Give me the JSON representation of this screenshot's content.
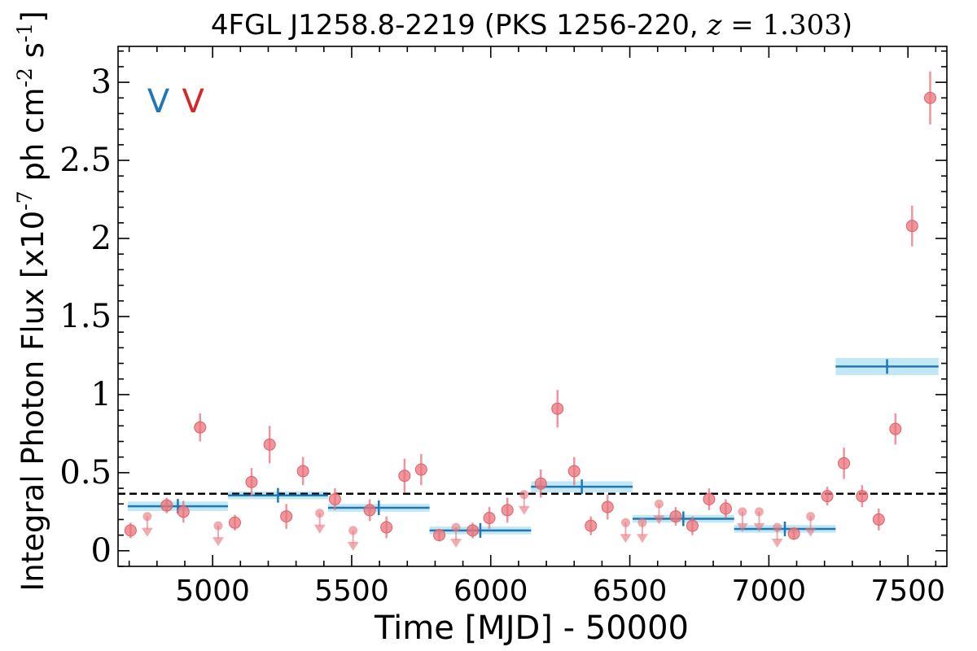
{
  "chart_data": {
    "type": "scatter",
    "title": "4FGL J1258.8-2219 (PKS 1256-220, z = 1.303)",
    "title_parts": {
      "prefix": "4FGL J1258.8-2219 (PKS 1256-220, ",
      "var": "z",
      "eq": " = 1.303",
      "suffix": ")"
    },
    "xlabel": "Time [MJD] - 50000",
    "ylabel": "Integral Photon Flux [x10",
    "ylabel_exp": "-7",
    "ylabel_mid": " ph cm",
    "ylabel_exp2": "-2",
    "ylabel_end": " s",
    "ylabel_exp3": "-1",
    "ylabel_close": "]",
    "xlim": [
      4660,
      7640
    ],
    "ylim": [
      -0.1,
      3.23
    ],
    "xticks": [
      5000,
      5500,
      6000,
      6500,
      7000,
      7500
    ],
    "xtick_labels": [
      "5000",
      "5500",
      "6000",
      "6500",
      "7000",
      "7500"
    ],
    "yticks": [
      0,
      0.5,
      1,
      1.5,
      2,
      2.5,
      3
    ],
    "ytick_labels": [
      "0",
      "0.5",
      "1",
      "1.5",
      "2",
      "2.5",
      "3"
    ],
    "markers": [
      {
        "x": 4805,
        "label": "V",
        "color": "#1f77b4"
      },
      {
        "x": 4930,
        "label": "V",
        "color": "#d62728"
      }
    ],
    "mean_flux": 0.365,
    "series": [
      {
        "kind": "detections",
        "color": "#e8737a",
        "points": [
          {
            "x": 4705,
            "y": 0.13,
            "err": 0.05
          },
          {
            "x": 4835,
            "y": 0.29,
            "err": 0.05
          },
          {
            "x": 4895,
            "y": 0.25,
            "err": 0.07
          },
          {
            "x": 4955,
            "y": 0.79,
            "err": 0.09
          },
          {
            "x": 5080,
            "y": 0.18,
            "err": 0.05
          },
          {
            "x": 5140,
            "y": 0.44,
            "err": 0.09
          },
          {
            "x": 5205,
            "y": 0.68,
            "err": 0.12
          },
          {
            "x": 5265,
            "y": 0.22,
            "err": 0.08
          },
          {
            "x": 5325,
            "y": 0.51,
            "err": 0.09
          },
          {
            "x": 5440,
            "y": 0.33,
            "err": 0.07
          },
          {
            "x": 5565,
            "y": 0.26,
            "err": 0.07
          },
          {
            "x": 5625,
            "y": 0.15,
            "err": 0.07
          },
          {
            "x": 5690,
            "y": 0.48,
            "err": 0.11
          },
          {
            "x": 5750,
            "y": 0.52,
            "err": 0.1
          },
          {
            "x": 5815,
            "y": 0.1,
            "err": 0.04
          },
          {
            "x": 5935,
            "y": 0.13,
            "err": 0.05
          },
          {
            "x": 5995,
            "y": 0.21,
            "err": 0.07
          },
          {
            "x": 6060,
            "y": 0.26,
            "err": 0.08
          },
          {
            "x": 6180,
            "y": 0.43,
            "err": 0.09
          },
          {
            "x": 6240,
            "y": 0.91,
            "err": 0.12
          },
          {
            "x": 6300,
            "y": 0.51,
            "err": 0.09
          },
          {
            "x": 6360,
            "y": 0.16,
            "err": 0.06
          },
          {
            "x": 6420,
            "y": 0.28,
            "err": 0.08
          },
          {
            "x": 6665,
            "y": 0.22,
            "err": 0.06
          },
          {
            "x": 6725,
            "y": 0.16,
            "err": 0.06
          },
          {
            "x": 6785,
            "y": 0.33,
            "err": 0.07
          },
          {
            "x": 6845,
            "y": 0.27,
            "err": 0.06
          },
          {
            "x": 7090,
            "y": 0.11,
            "err": 0.04
          },
          {
            "x": 7210,
            "y": 0.35,
            "err": 0.06
          },
          {
            "x": 7270,
            "y": 0.56,
            "err": 0.1
          },
          {
            "x": 7335,
            "y": 0.35,
            "err": 0.07
          },
          {
            "x": 7395,
            "y": 0.2,
            "err": 0.07
          },
          {
            "x": 7455,
            "y": 0.78,
            "err": 0.1
          },
          {
            "x": 7515,
            "y": 2.08,
            "err": 0.13
          },
          {
            "x": 7580,
            "y": 2.9,
            "err": 0.17
          }
        ]
      },
      {
        "kind": "upper_limits",
        "color": "#e8737a",
        "points": [
          {
            "x": 4765,
            "y": 0.22
          },
          {
            "x": 5020,
            "y": 0.16
          },
          {
            "x": 5385,
            "y": 0.24
          },
          {
            "x": 5505,
            "y": 0.13
          },
          {
            "x": 5875,
            "y": 0.15
          },
          {
            "x": 6120,
            "y": 0.36
          },
          {
            "x": 6485,
            "y": 0.18
          },
          {
            "x": 6545,
            "y": 0.18
          },
          {
            "x": 6605,
            "y": 0.3
          },
          {
            "x": 6905,
            "y": 0.25
          },
          {
            "x": 6965,
            "y": 0.25
          },
          {
            "x": 7030,
            "y": 0.15
          },
          {
            "x": 7150,
            "y": 0.22
          }
        ]
      },
      {
        "kind": "bins",
        "color": "#1f77b4",
        "band_color": "#a8def0",
        "points": [
          {
            "x0": 4695,
            "x1": 5055,
            "y": 0.285,
            "err": 0.03
          },
          {
            "x0": 5055,
            "x1": 5415,
            "y": 0.355,
            "err": 0.025
          },
          {
            "x0": 5415,
            "x1": 5780,
            "y": 0.275,
            "err": 0.025
          },
          {
            "x0": 5780,
            "x1": 6145,
            "y": 0.13,
            "err": 0.025
          },
          {
            "x0": 6145,
            "x1": 6510,
            "y": 0.41,
            "err": 0.035
          },
          {
            "x0": 6510,
            "x1": 6875,
            "y": 0.205,
            "err": 0.025
          },
          {
            "x0": 6875,
            "x1": 7240,
            "y": 0.14,
            "err": 0.025
          },
          {
            "x0": 7240,
            "x1": 7610,
            "y": 1.18,
            "err": 0.055
          }
        ]
      }
    ]
  }
}
